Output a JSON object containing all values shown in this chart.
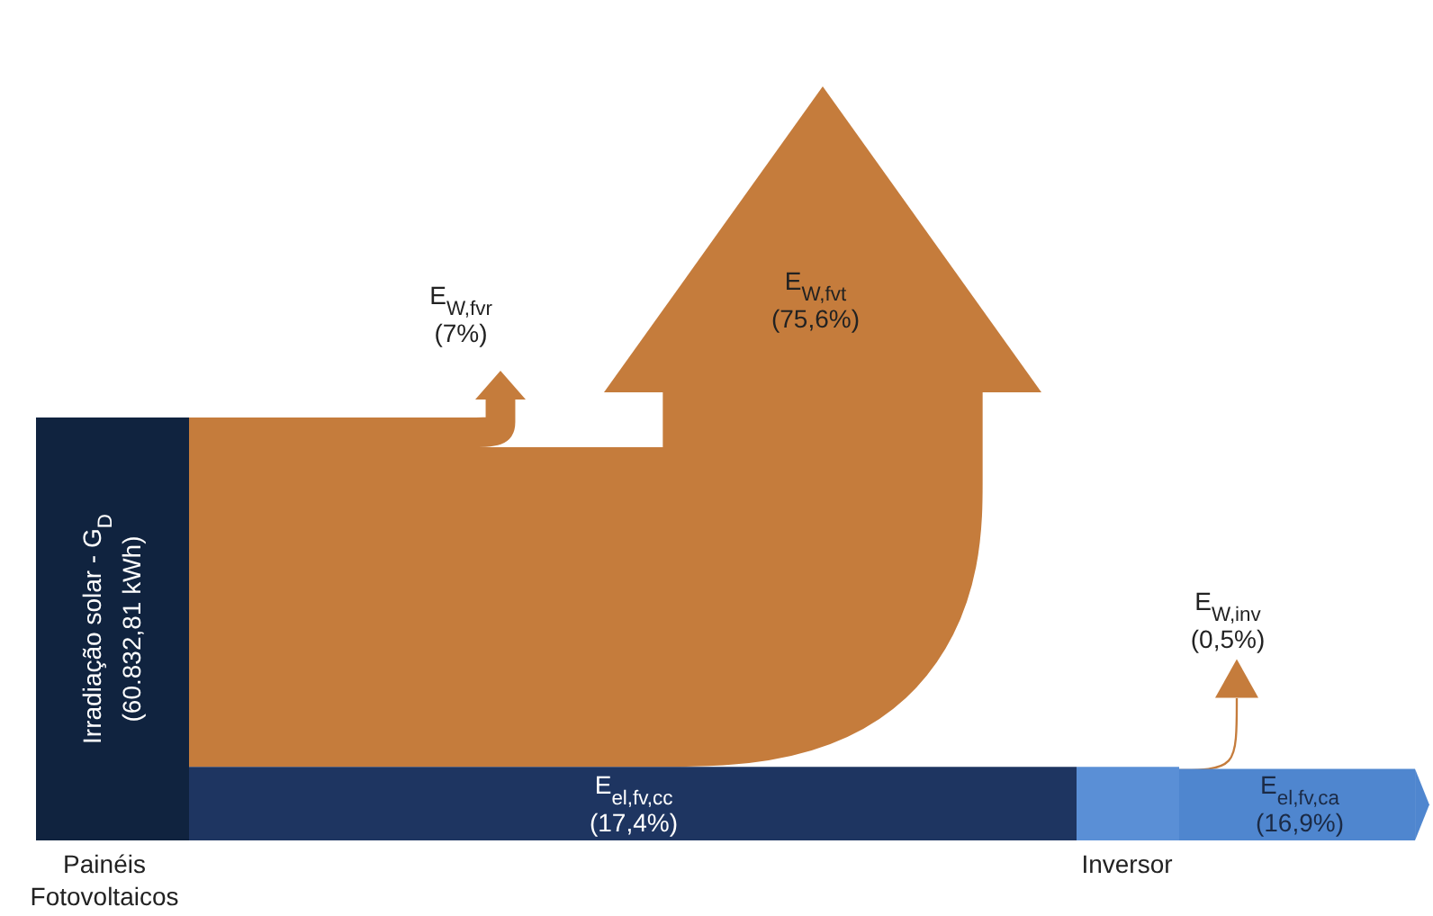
{
  "chart_data": {
    "type": "other",
    "categories": [
      "E$_{W,fvr}$",
      "E$_{W,fvt}$",
      "E$_{el,fv,cc}$",
      "E$_{W,inv}$",
      "E$_{el,fv,ca}$"
    ],
    "values": [
      7,
      75.6,
      17.4,
      0.5,
      16.9
    ],
    "value_labels": [
      "(7%)",
      "(75,6%)",
      "(17,4%)",
      "(0,5%)",
      "(16,9%)"
    ],
    "colors": [
      "#c57c3c",
      "#c57c3c",
      "#1e3561",
      "#c57c3c",
      "#4f86cf"
    ],
    "annotations": [
      "Irradiação solar - G$_{D}$",
      "(60.832,81 kWh)",
      "Painéis Fotovoltaicos",
      "Inversor"
    ]
  }
}
